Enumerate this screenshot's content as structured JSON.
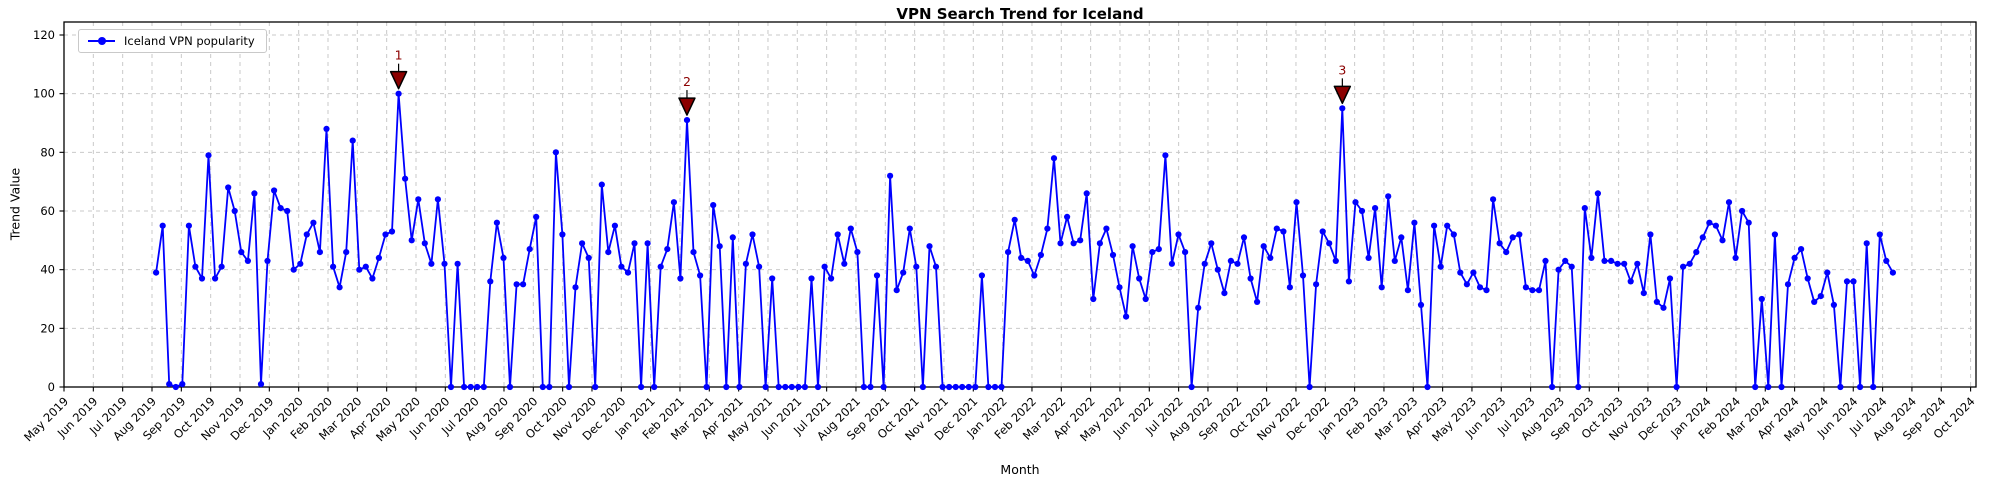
{
  "chart_data": {
    "type": "line",
    "title": "VPN Search Trend for Iceland",
    "xlabel": "Month",
    "ylabel": "Trend Value",
    "ylim": [
      0,
      120
    ],
    "yticks": [
      0,
      20,
      40,
      60,
      80,
      100,
      120
    ],
    "grid": true,
    "grid_color": "#c9c9c9",
    "axis_color": "#000000",
    "legend": {
      "position": "upper-left",
      "entries": [
        {
          "label": "Iceland VPN popularity",
          "color": "#0000ff",
          "marker": "circle"
        }
      ]
    },
    "x_tick_labels": [
      "May 2019",
      "Jun 2019",
      "Jul 2019",
      "Aug 2019",
      "Sep 2019",
      "Oct 2019",
      "Nov 2019",
      "Dec 2019",
      "Jan 2020",
      "Feb 2020",
      "Mar 2020",
      "Apr 2020",
      "May 2020",
      "Jun 2020",
      "Jul 2020",
      "Aug 2020",
      "Sep 2020",
      "Oct 2020",
      "Nov 2020",
      "Dec 2020",
      "Jan 2021",
      "Feb 2021",
      "Mar 2021",
      "Apr 2021",
      "May 2021",
      "Jun 2021",
      "Jul 2021",
      "Aug 2021",
      "Sep 2021",
      "Oct 2021",
      "Nov 2021",
      "Dec 2021",
      "Jan 2022",
      "Feb 2022",
      "Mar 2022",
      "Apr 2022",
      "May 2022",
      "Jun 2022",
      "Jul 2022",
      "Aug 2022",
      "Sep 2022",
      "Oct 2022",
      "Nov 2022",
      "Dec 2022",
      "Jan 2023",
      "Feb 2023",
      "Mar 2023",
      "Apr 2023",
      "May 2023",
      "Jun 2023",
      "Jul 2023",
      "Aug 2023",
      "Sep 2023",
      "Oct 2023",
      "Nov 2023",
      "Dec 2023",
      "Jan 2024",
      "Feb 2024",
      "Mar 2024",
      "Apr 2024",
      "May 2024",
      "Jun 2024",
      "Jul 2024",
      "Aug 2024",
      "Sep 2024",
      "Oct 2024"
    ],
    "series": [
      {
        "name": "Iceland VPN popularity",
        "color": "#0000ff",
        "marker": "o",
        "frequency": "weekly",
        "x_start_month_index": 3.14,
        "x_end_month_index": 62.35,
        "values": [
          39,
          55,
          1,
          0,
          1,
          55,
          41,
          37,
          79,
          37,
          41,
          68,
          60,
          46,
          43,
          66,
          1,
          43,
          67,
          61,
          60,
          40,
          42,
          52,
          56,
          46,
          88,
          41,
          34,
          46,
          84,
          40,
          41,
          37,
          44,
          52,
          53,
          100,
          71,
          50,
          64,
          49,
          42,
          64,
          42,
          0,
          42,
          0,
          0,
          0,
          0,
          36,
          56,
          44,
          0,
          35,
          35,
          47,
          58,
          0,
          0,
          80,
          52,
          0,
          34,
          49,
          44,
          0,
          69,
          46,
          55,
          41,
          39,
          49,
          0,
          49,
          0,
          41,
          47,
          63,
          37,
          91,
          46,
          38,
          0,
          62,
          48,
          0,
          51,
          0,
          42,
          52,
          41,
          0,
          37,
          0,
          0,
          0,
          0,
          0,
          37,
          0,
          41,
          37,
          52,
          42,
          54,
          46,
          0,
          0,
          38,
          0,
          72,
          33,
          39,
          54,
          41,
          0,
          48,
          41,
          0,
          0,
          0,
          0,
          0,
          0,
          38,
          0,
          0,
          0,
          46,
          57,
          44,
          43,
          38,
          45,
          54,
          78,
          49,
          58,
          49,
          50,
          66,
          30,
          49,
          54,
          45,
          34,
          24,
          48,
          37,
          30,
          46,
          47,
          79,
          42,
          52,
          46,
          0,
          27,
          42,
          49,
          40,
          32,
          43,
          42,
          51,
          37,
          29,
          48,
          44,
          54,
          53,
          34,
          63,
          38,
          0,
          35,
          53,
          49,
          43,
          95,
          36,
          63,
          60,
          44,
          61,
          34,
          65,
          43,
          51,
          33,
          56,
          28,
          0,
          55,
          41,
          55,
          52,
          39,
          35,
          39,
          34,
          33,
          64,
          49,
          46,
          51,
          52,
          34,
          33,
          33,
          43,
          0,
          40,
          43,
          41,
          0,
          61,
          44,
          66,
          43,
          43,
          42,
          42,
          36,
          42,
          32,
          52,
          29,
          27,
          37,
          0,
          41,
          42,
          46,
          51,
          56,
          55,
          50,
          63,
          44,
          60,
          56,
          0,
          30,
          0,
          52,
          0,
          35,
          44,
          47,
          37,
          29,
          31,
          39,
          28,
          0,
          36,
          36,
          0,
          49,
          0,
          52,
          43,
          39
        ]
      }
    ],
    "annotations": [
      {
        "label": "1",
        "point_index": 37,
        "value": 100,
        "month": "Apr 2020",
        "color": "#8b0000"
      },
      {
        "label": "2",
        "point_index": 81,
        "value": 91,
        "month": "Feb 2021",
        "color": "#8b0000"
      },
      {
        "label": "3",
        "point_index": 181,
        "value": 95,
        "month": "Dec 2022",
        "color": "#8b0000"
      }
    ]
  }
}
